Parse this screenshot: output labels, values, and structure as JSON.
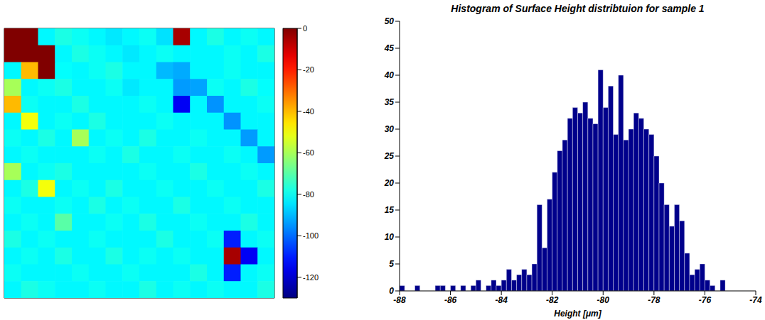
{
  "chart_data": [
    {
      "type": "heatmap",
      "tick_labels": false,
      "cells": [
        [
          0,
          0,
          -82,
          -78,
          -80,
          -82,
          -84,
          -82,
          -80,
          -85,
          -5,
          -82,
          -78,
          -82,
          -80,
          -82
        ],
        [
          0,
          0,
          0,
          -82,
          -78,
          -80,
          -82,
          -84,
          -82,
          -80,
          -82,
          -82,
          -82,
          -80,
          -82,
          -78
        ],
        [
          -82,
          -40,
          0,
          -81,
          -82,
          -80,
          -78,
          -82,
          -82,
          -90,
          -92,
          -82,
          -82,
          -80,
          -82,
          -82
        ],
        [
          -60,
          -82,
          -80,
          -78,
          -82,
          -82,
          -80,
          -84,
          -82,
          -82,
          -94,
          -93,
          -80,
          -82,
          -78,
          -81
        ],
        [
          -40,
          -80,
          -82,
          -82,
          -78,
          -82,
          -82,
          -82,
          -80,
          -82,
          -115,
          -82,
          -95,
          -82,
          -82,
          -80
        ],
        [
          -82,
          -50,
          -82,
          -80,
          -82,
          -78,
          -82,
          -82,
          -82,
          -80,
          -82,
          -82,
          -82,
          -95,
          -82,
          -82
        ],
        [
          -80,
          -82,
          -78,
          -82,
          -60,
          -82,
          -80,
          -82,
          -78,
          -82,
          -82,
          -80,
          -82,
          -82,
          -94,
          -82
        ],
        [
          -82,
          -80,
          -82,
          -82,
          -82,
          -80,
          -82,
          -78,
          -82,
          -82,
          -80,
          -82,
          -82,
          -80,
          -82,
          -94
        ],
        [
          -60,
          -82,
          -80,
          -78,
          -82,
          -82,
          -82,
          -82,
          -80,
          -82,
          -82,
          -78,
          -82,
          -82,
          -80,
          -82
        ],
        [
          -82,
          -78,
          -50,
          -82,
          -80,
          -82,
          -78,
          -82,
          -82,
          -80,
          -82,
          -82,
          -80,
          -82,
          -82,
          -78
        ],
        [
          -80,
          -82,
          -82,
          -80,
          -82,
          -78,
          -82,
          -80,
          -82,
          -82,
          -78,
          -82,
          -82,
          -80,
          -82,
          -82
        ],
        [
          -82,
          -80,
          -82,
          -70,
          -82,
          -82,
          -80,
          -82,
          -78,
          -82,
          -82,
          -80,
          -82,
          -82,
          -78,
          -82
        ],
        [
          -78,
          -82,
          -80,
          -82,
          -82,
          -80,
          -82,
          -82,
          -82,
          -78,
          -82,
          -82,
          -80,
          -110,
          -82,
          -80
        ],
        [
          -82,
          -80,
          -82,
          -78,
          -82,
          -82,
          -78,
          -82,
          -80,
          -82,
          -80,
          -82,
          -82,
          -5,
          -115,
          -82
        ],
        [
          -80,
          -82,
          -82,
          -82,
          -80,
          -82,
          -82,
          -80,
          -82,
          -82,
          -82,
          -78,
          -82,
          -110,
          -82,
          -80
        ],
        [
          -82,
          -78,
          -80,
          -82,
          -82,
          -80,
          -82,
          -82,
          -78,
          -82,
          -80,
          -82,
          -80,
          -82,
          -82,
          -78
        ]
      ],
      "colorbar": {
        "range": [
          -130,
          0
        ],
        "ticks": [
          0,
          -20,
          -40,
          -60,
          -80,
          -100,
          -120
        ]
      }
    },
    {
      "type": "histogram",
      "title": "Histogram of Surface Height distribtuion for sample 1",
      "x_label": "Height [μm]",
      "color": "#00008b",
      "bins": [
        -88.0,
        -87.8,
        -87.6,
        -87.4,
        -87.2,
        -87.0,
        -86.8,
        -86.6,
        -86.4,
        -86.2,
        -86.0,
        -85.8,
        -85.6,
        -85.4,
        -85.2,
        -85.0,
        -84.8,
        -84.6,
        -84.4,
        -84.2,
        -84.0,
        -83.8,
        -83.6,
        -83.4,
        -83.2,
        -83.0,
        -82.8,
        -82.6,
        -82.4,
        -82.2,
        -82.0,
        -81.8,
        -81.6,
        -81.4,
        -81.2,
        -81.0,
        -80.8,
        -80.6,
        -80.4,
        -80.2,
        -80.0,
        -79.8,
        -79.6,
        -79.4,
        -79.2,
        -79.0,
        -78.8,
        -78.6,
        -78.4,
        -78.2,
        -78.0,
        -77.8,
        -77.6,
        -77.4,
        -77.2,
        -77.0,
        -76.8,
        -76.6,
        -76.4,
        -76.2,
        -76.0,
        -75.8,
        -75.6,
        -75.4,
        -75.2,
        -75.0
      ],
      "counts": [
        1,
        0,
        0,
        1,
        0,
        0,
        0,
        1,
        1,
        0,
        1,
        0,
        1,
        0,
        1,
        2,
        0,
        1,
        2,
        1,
        2,
        4,
        2,
        3,
        4,
        3,
        5,
        16,
        8,
        17,
        22,
        26,
        28,
        32,
        34,
        33,
        35,
        32,
        31,
        41,
        34,
        38,
        29,
        40,
        28,
        30,
        33,
        32,
        30,
        29,
        25,
        20,
        16,
        12,
        16,
        13,
        7,
        3,
        4,
        5,
        2,
        1,
        0,
        2,
        0
      ],
      "xlim": [
        -88,
        -74
      ],
      "xticks": [
        -88,
        -86,
        -84,
        -82,
        -80,
        -78,
        -76,
        -74
      ],
      "ylim": [
        0,
        50
      ],
      "yticks": [
        0,
        5,
        10,
        15,
        20,
        25,
        30,
        35,
        40,
        45,
        50
      ]
    }
  ]
}
